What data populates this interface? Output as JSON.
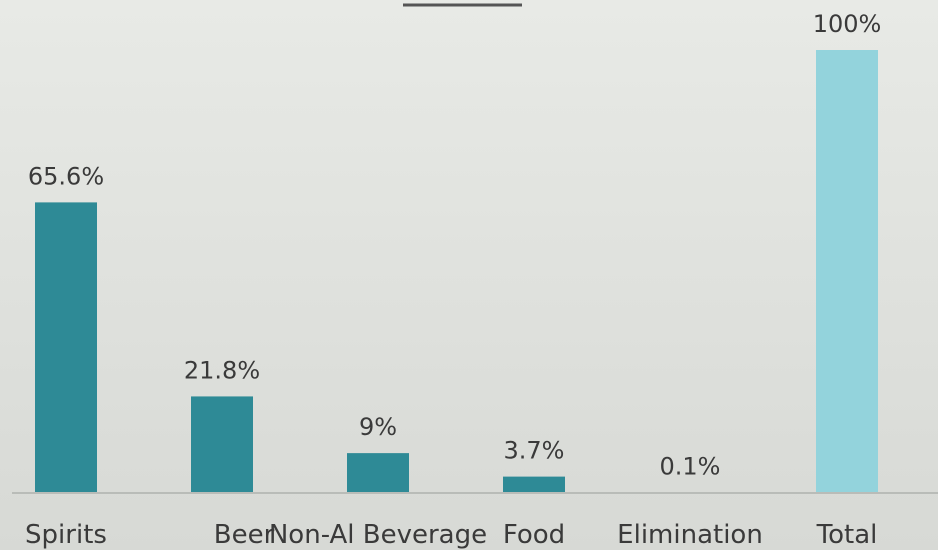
{
  "chart_data": {
    "type": "bar",
    "title": "",
    "xlabel": "",
    "ylabel": "",
    "ylim": [
      0,
      100
    ],
    "grid": false,
    "categories": [
      "Spirits",
      "Beer",
      "Non-Al Beverage",
      "Food",
      "Elimination",
      "Total"
    ],
    "values": [
      65.6,
      21.8,
      9,
      3.7,
      0.1,
      100
    ],
    "labels": [
      "65.6%",
      "21.8%",
      "9%",
      "3.7%",
      "0.1%",
      "100%"
    ],
    "colors": {
      "bar": "#2e8a96",
      "total_bar": "#93d3dc",
      "axis": "#b9bcb8",
      "title_rule": "#555555"
    }
  }
}
